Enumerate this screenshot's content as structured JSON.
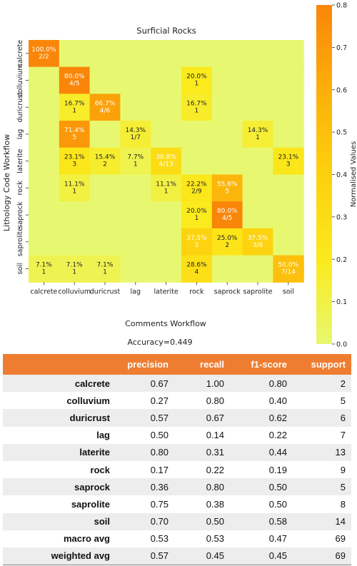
{
  "chart_data": {
    "type": "heatmap",
    "title": "Surficial Rocks",
    "xlabel": "Comments Workflow",
    "ylabel": "Lithology Code Workflow",
    "x_categories": [
      "calcrete",
      "colluvium",
      "duricrust",
      "lag",
      "laterite",
      "rock",
      "saprock",
      "saprolite",
      "soil"
    ],
    "y_categories": [
      "calcrete",
      "colluvium",
      "duricrust",
      "lag",
      "laterite",
      "rock",
      "saprock",
      "saprolite",
      "soil"
    ],
    "normalised_values": [
      [
        1.0,
        0,
        0,
        0,
        0,
        0,
        0,
        0,
        0
      ],
      [
        0,
        0.8,
        0,
        0,
        0,
        0.2,
        0,
        0,
        0
      ],
      [
        0,
        0.167,
        0.667,
        0,
        0,
        0.167,
        0,
        0,
        0
      ],
      [
        0,
        0.714,
        0,
        0.143,
        0,
        0,
        0,
        0.143,
        0
      ],
      [
        0,
        0.231,
        0.154,
        0.077,
        0.308,
        0,
        0,
        0,
        0.231
      ],
      [
        0,
        0.111,
        0,
        0,
        0.111,
        0.222,
        0.556,
        0,
        0
      ],
      [
        0,
        0,
        0,
        0,
        0,
        0.2,
        0.8,
        0,
        0
      ],
      [
        0,
        0,
        0,
        0,
        0,
        0.375,
        0.25,
        0.375,
        0
      ],
      [
        0.071,
        0.071,
        0.071,
        0,
        0,
        0.286,
        0,
        0,
        0.5
      ]
    ],
    "cell_labels": [
      [
        "100.0%\n2/2",
        "",
        "",
        "",
        "",
        "",
        "",
        "",
        ""
      ],
      [
        "",
        "80.0%\n4/5",
        "",
        "",
        "",
        "20.0%\n1",
        "",
        "",
        ""
      ],
      [
        "",
        "16.7%\n1",
        "66.7%\n4/6",
        "",
        "",
        "16.7%\n1",
        "",
        "",
        ""
      ],
      [
        "",
        "71.4%\n5",
        "",
        "14.3%\n1/7",
        "",
        "",
        "",
        "14.3%\n1",
        ""
      ],
      [
        "",
        "23.1%\n3",
        "15.4%\n2",
        "7.7%\n1",
        "30.8%\n4/13",
        "",
        "",
        "",
        "23.1%\n3"
      ],
      [
        "",
        "11.1%\n1",
        "",
        "",
        "11.1%\n1",
        "22.2%\n2/9",
        "55.6%\n5",
        "",
        ""
      ],
      [
        "",
        "",
        "",
        "",
        "",
        "20.0%\n1",
        "80.0%\n4/5",
        "",
        ""
      ],
      [
        "",
        "",
        "",
        "",
        "",
        "37.5%\n3",
        "25.0%\n2",
        "37.5%\n3/8",
        ""
      ],
      [
        "7.1%\n1",
        "7.1%\n1",
        "7.1%\n1",
        "",
        "",
        "28.6%\n4",
        "",
        "",
        "50.0%\n7/14"
      ]
    ],
    "colorbar": {
      "label": "Normalised Values",
      "range": [
        0,
        0.8
      ],
      "ticks": [
        "0.0",
        "0.1",
        "0.2",
        "0.3",
        "0.4",
        "0.5",
        "0.6",
        "0.7",
        "0.8"
      ],
      "low_color": "#e7f870",
      "high_color": "#fa8609"
    },
    "accuracy_text": "Accuracy=0.449"
  },
  "report_table": {
    "headers": [
      "",
      "precision",
      "recall",
      "f1-score",
      "support"
    ],
    "rows": [
      [
        "calcrete",
        "0.67",
        "1.00",
        "0.80",
        "2"
      ],
      [
        "colluvium",
        "0.27",
        "0.80",
        "0.40",
        "5"
      ],
      [
        "duricrust",
        "0.57",
        "0.67",
        "0.62",
        "6"
      ],
      [
        "lag",
        "0.50",
        "0.14",
        "0.22",
        "7"
      ],
      [
        "laterite",
        "0.80",
        "0.31",
        "0.44",
        "13"
      ],
      [
        "rock",
        "0.17",
        "0.22",
        "0.19",
        "9"
      ],
      [
        "saprock",
        "0.36",
        "0.80",
        "0.50",
        "5"
      ],
      [
        "saprolite",
        "0.75",
        "0.38",
        "0.50",
        "8"
      ],
      [
        "soil",
        "0.70",
        "0.50",
        "0.58",
        "14"
      ],
      [
        "macro avg",
        "0.53",
        "0.53",
        "0.47",
        "69"
      ],
      [
        "weighted avg",
        "0.57",
        "0.45",
        "0.45",
        "69"
      ]
    ]
  }
}
